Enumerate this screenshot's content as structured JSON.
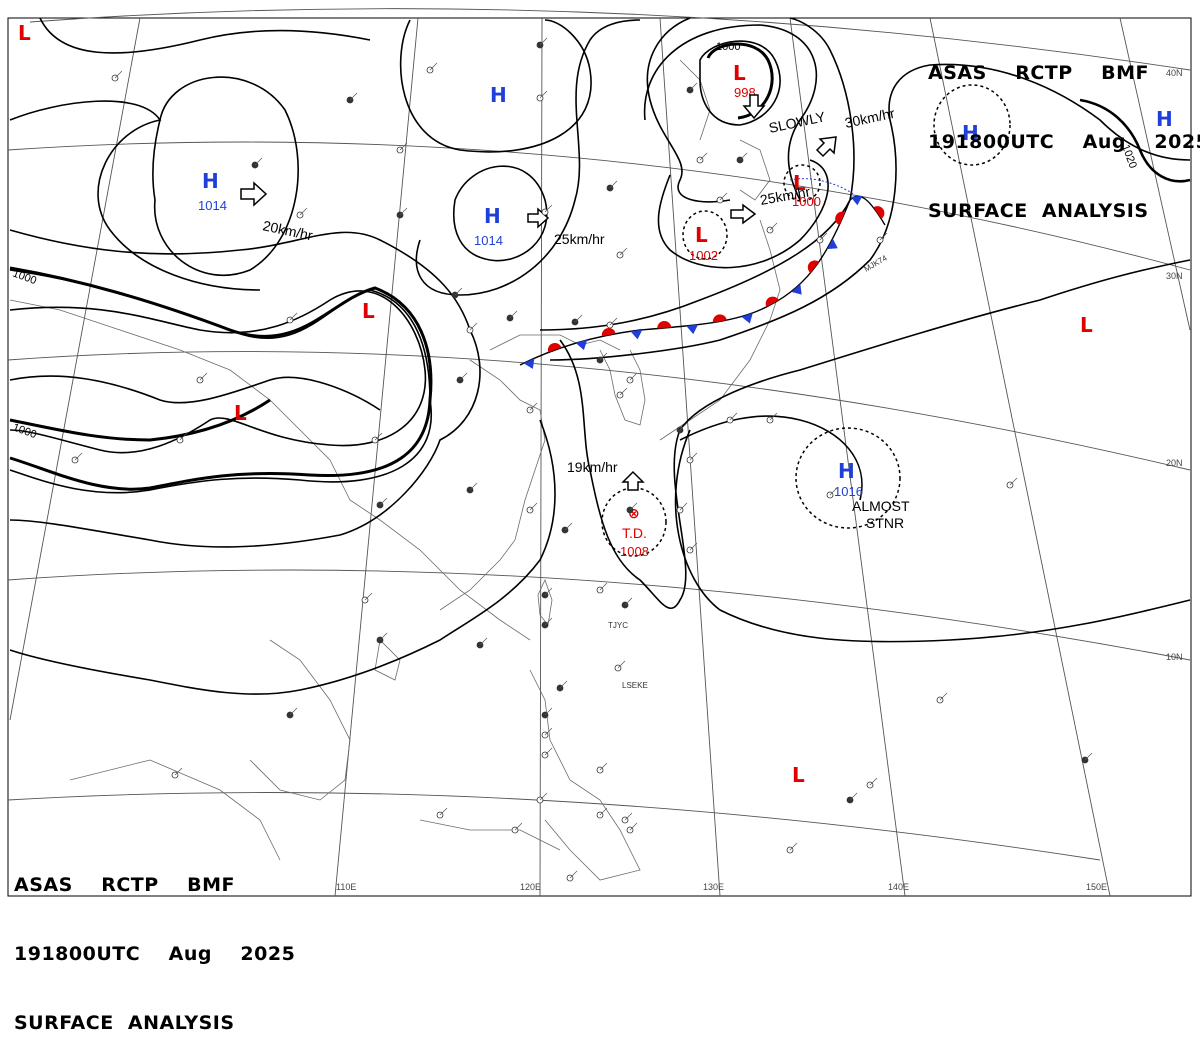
{
  "header": {
    "line1": "ASAS    RCTP    BMF",
    "line2": "191800UTC    Aug    2025",
    "line3": "SURFACE  ANALYSIS"
  },
  "colors": {
    "high": "#1f3fd8",
    "low": "#e00000",
    "front_cold": "#1f3fd8",
    "front_warm": "#e00000",
    "isobar": "#000000",
    "coast": "#6b6b6b",
    "grid": "#555555"
  },
  "icons": {
    "high_center": "letter-H",
    "low_center": "letter-L",
    "movement": "outline-arrow",
    "tropical_depression": "circled-x"
  },
  "grid_labels": {
    "lat": [
      "40N",
      "30N",
      "20N",
      "10N"
    ],
    "lon": [
      "110E",
      "120E",
      "130E",
      "140E",
      "150E"
    ]
  },
  "isobar_labels": [
    "1000",
    "1000",
    "1000",
    "1020"
  ],
  "systems": [
    {
      "kind": "H",
      "pressure": "1014",
      "motion": "20km/hr"
    },
    {
      "kind": "H",
      "pressure": "1014",
      "motion": "25km/hr"
    },
    {
      "kind": "H",
      "pressure": ""
    },
    {
      "kind": "H",
      "pressure": ""
    },
    {
      "kind": "H",
      "pressure": ""
    },
    {
      "kind": "L",
      "pressure": "998",
      "motion": "SLOWLY"
    },
    {
      "kind": "L",
      "pressure": "1000",
      "motion": "30km/hr"
    },
    {
      "kind": "L",
      "pressure": "1002",
      "motion": "25km/hr"
    },
    {
      "kind": "L",
      "pressure": ""
    },
    {
      "kind": "L",
      "pressure": ""
    },
    {
      "kind": "L",
      "pressure": ""
    },
    {
      "kind": "L",
      "pressure": ""
    },
    {
      "kind": "L",
      "pressure": ""
    },
    {
      "kind": "H",
      "pressure": "1016",
      "motion": "ALMOST STNR"
    },
    {
      "kind": "T.D.",
      "pressure": "1008",
      "motion": "19km/hr"
    }
  ],
  "motion_texts": {
    "h1": "20km/hr",
    "h2": "25km/hr",
    "l_slowly": "SLOWLY",
    "l_30": "30km/hr",
    "l_25": "25km/hr",
    "td": "19km/hr",
    "stnr1": "ALMOST",
    "stnr2": "STNR"
  },
  "station_marks": [
    "TJYC",
    "LSEKE",
    "MJK74"
  ]
}
